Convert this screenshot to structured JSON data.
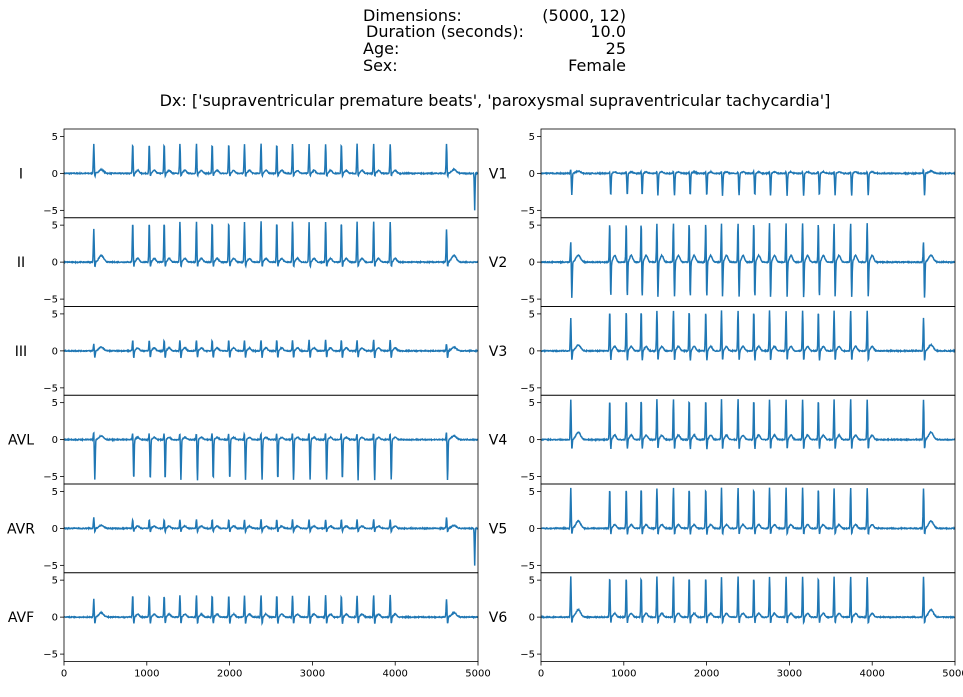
{
  "header": {
    "rows": [
      {
        "label": "Dimensions:",
        "value": "(5000, 12)"
      },
      {
        "label": "Duration (seconds):",
        "value": "10.0"
      },
      {
        "label": "Age:",
        "value": "25"
      },
      {
        "label": "Sex:",
        "value": "Female"
      }
    ],
    "dx": "Dx: ['supraventricular premature beats', 'paroxysmal supraventricular tachycardia']"
  },
  "chart_data": {
    "type": "line",
    "line_color": "#1f77b4",
    "xlim": [
      0,
      5000
    ],
    "ylim": [
      -6,
      6
    ],
    "x_ticks": [
      "0",
      "1000",
      "2000",
      "3000",
      "4000",
      "5000"
    ],
    "y_ticks": [
      "5",
      "0",
      "−5"
    ],
    "beat_x": [
      360,
      830,
      1030,
      1210,
      1400,
      1600,
      1790,
      1990,
      2180,
      2380,
      2570,
      2760,
      2960,
      3160,
      3350,
      3540,
      3740,
      3940,
      4620
    ],
    "leads": [
      {
        "name": "I",
        "col": 0,
        "r": 4.0,
        "s": -0.5,
        "t": 0.4,
        "r2": 4.0,
        "t2": 0.5,
        "neg": [
          4960,
          -5.0
        ]
      },
      {
        "name": "II",
        "col": 0,
        "r": 5.5,
        "s": -0.8,
        "t": 0.5,
        "r2": 4.5,
        "t2": 0.9,
        "neg": null
      },
      {
        "name": "III",
        "col": 0,
        "r": 1.5,
        "s": -1.0,
        "t": 0.4,
        "r2": 1.0,
        "t2": 0.5,
        "neg": null
      },
      {
        "name": "AVL",
        "col": 0,
        "r": 1.0,
        "s": -5.5,
        "t": 0.3,
        "r2": 1.2,
        "t2": 0.5,
        "neg": null
      },
      {
        "name": "AVR",
        "col": 0,
        "r": 1.2,
        "s": -0.5,
        "t": 0.3,
        "r2": 1.5,
        "t2": 0.4,
        "neg": [
          4960,
          -5.0
        ]
      },
      {
        "name": "AVF",
        "col": 0,
        "r": 3.0,
        "s": -1.0,
        "t": 0.4,
        "r2": 2.5,
        "t2": 0.6,
        "neg": null
      },
      {
        "name": "V1",
        "col": 1,
        "r": 0.3,
        "s": -3.0,
        "t": 0.2,
        "r2": 0.6,
        "t2": 0.3,
        "neg": null
      },
      {
        "name": "V2",
        "col": 1,
        "r": 5.5,
        "s": -5.0,
        "t": 0.9,
        "r2": 3.0,
        "t2": 0.9,
        "neg": null
      },
      {
        "name": "V3",
        "col": 1,
        "r": 5.5,
        "s": -1.5,
        "t": 0.6,
        "r2": 4.5,
        "t2": 0.8,
        "neg": null
      },
      {
        "name": "V4",
        "col": 1,
        "r": 5.5,
        "s": -1.5,
        "t": 0.6,
        "r2": 5.5,
        "t2": 1.0,
        "neg": null
      },
      {
        "name": "V5",
        "col": 1,
        "r": 5.5,
        "s": -1.0,
        "t": 0.5,
        "r2": 5.5,
        "t2": 1.0,
        "neg": null
      },
      {
        "name": "V6",
        "col": 1,
        "r": 5.5,
        "s": -1.0,
        "t": 0.5,
        "r2": 5.5,
        "t2": 1.0,
        "neg": null
      }
    ]
  }
}
